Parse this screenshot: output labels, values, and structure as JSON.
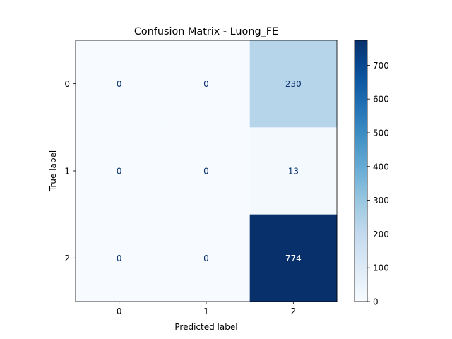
{
  "chart_data": {
    "type": "heatmap",
    "title": "Confusion Matrix - Luong_FE",
    "xlabel": "Predicted label",
    "ylabel": "True label",
    "x_categories": [
      "0",
      "1",
      "2"
    ],
    "y_categories": [
      "0",
      "1",
      "2"
    ],
    "values": [
      [
        0,
        0,
        230
      ],
      [
        0,
        0,
        13
      ],
      [
        0,
        0,
        774
      ]
    ],
    "colormap": "Blues",
    "color_range": [
      0,
      774
    ],
    "colorbar_ticks": [
      0,
      100,
      200,
      300,
      400,
      500,
      600,
      700
    ],
    "grid": false,
    "text_color_dark": "#08306b",
    "text_color_light": "#ffffff"
  }
}
